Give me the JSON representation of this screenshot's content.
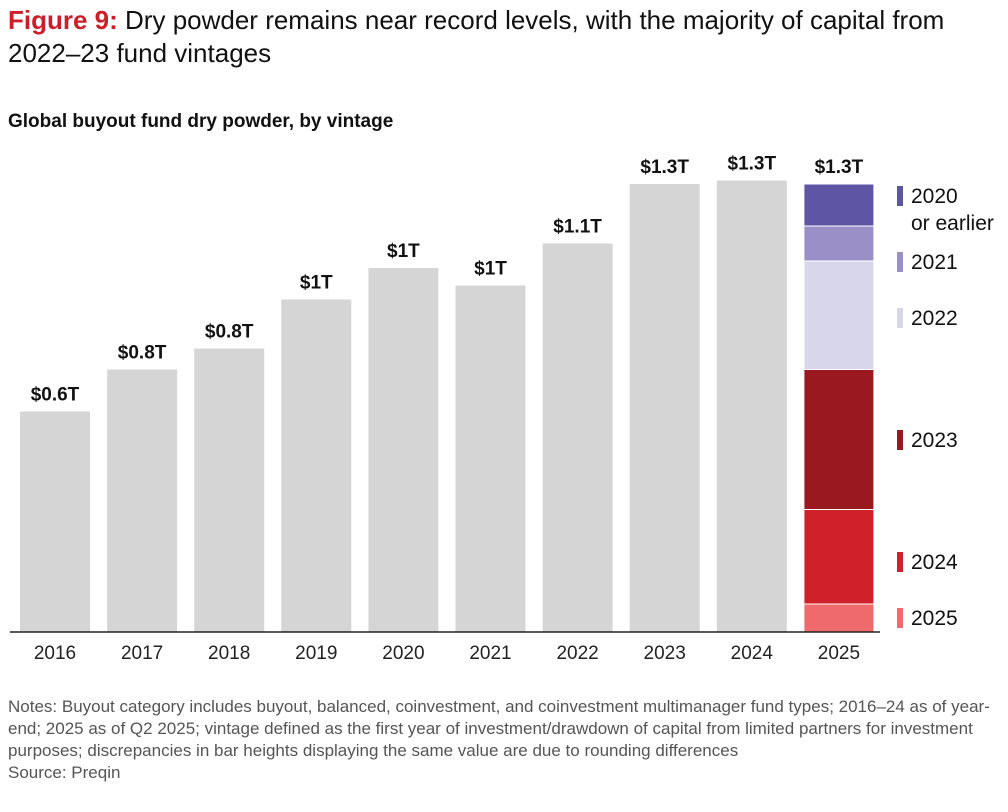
{
  "figure_label": "Figure 9:",
  "figure_title": "Dry powder remains near record levels, with the majority of capital from 2022–23 fund vintages",
  "notes": "Notes: Buyout category includes buyout, balanced, coinvestment, and coinvestment multimanager fund types; 2016–24 as of year-end; 2025 as of Q2 2025; vintage defined as the first year of investment/drawdown of capital from limited partners for investment purposes; discrepancies in bar heights displaying the same value are due to rounding differences",
  "source": "Source: Preqin",
  "chart_data": {
    "type": "bar",
    "title": "Global buyout fund dry powder, by vintage",
    "xlabel": "",
    "ylabel": "",
    "unit": "$T",
    "ylim": [
      0,
      1.35
    ],
    "grid": false,
    "categories": [
      "2016",
      "2017",
      "2018",
      "2019",
      "2020",
      "2021",
      "2022",
      "2023",
      "2024",
      "2025"
    ],
    "values": [
      0.63,
      0.75,
      0.81,
      0.95,
      1.04,
      0.99,
      1.11,
      1.28,
      1.29,
      1.28
    ],
    "data_labels": [
      "$0.6T",
      "$0.8T",
      "$0.8T",
      "$1T",
      "$1T",
      "$1T",
      "$1.1T",
      "$1.3T",
      "$1.3T",
      "$1.3T"
    ],
    "bar_color": "#d5d5d5",
    "stacked_category": "2025",
    "stack_series": [
      {
        "name": "2025",
        "value": 0.08,
        "color": "#ee6a6c"
      },
      {
        "name": "2024",
        "value": 0.27,
        "color": "#d0202a"
      },
      {
        "name": "2023",
        "value": 0.4,
        "color": "#9a1820"
      },
      {
        "name": "2022",
        "value": 0.31,
        "color": "#d8d6ea"
      },
      {
        "name": "2021",
        "value": 0.1,
        "color": "#9a8fc6"
      },
      {
        "name": "2020 or earlier",
        "value": 0.12,
        "color": "#5e55a4"
      }
    ],
    "legend_placement": "right"
  }
}
